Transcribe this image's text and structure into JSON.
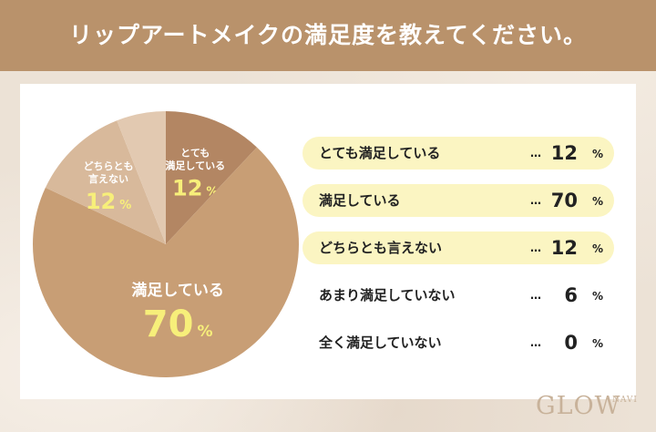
{
  "title": "リップアートメイクの満足度を教えてください。",
  "logo": {
    "main": "GLOW",
    "sub": "NAVI"
  },
  "colors": {
    "header": "#b9926b",
    "slice_main": "#c89e75",
    "slice_dark": "#b38663",
    "slice_light": "#d8b99b",
    "slice_lighter": "#e2c9b1",
    "value_text": "#f7ef7a",
    "highlight_bar": "#fbf5c2"
  },
  "chart_data": {
    "type": "pie",
    "unit": "%",
    "slices": [
      {
        "label": "とても満足している",
        "pie_label": [
          "とても",
          "満足している"
        ],
        "value": 12
      },
      {
        "label": "満足している",
        "pie_label": [
          "満足している"
        ],
        "value": 70
      },
      {
        "label": "どちらとも言えない",
        "pie_label": [
          "どちらとも",
          "言えない"
        ],
        "value": 12
      },
      {
        "label": "あまり満足していない",
        "pie_label": [],
        "value": 6
      },
      {
        "label": "全く満足していない",
        "pie_label": [],
        "value": 0
      }
    ]
  },
  "legend": {
    "dots": "…",
    "rows": [
      {
        "label": "とても満足している",
        "value": "12",
        "unit": "%",
        "highlight": true
      },
      {
        "label": "満足している",
        "value": "70",
        "unit": "%",
        "highlight": true
      },
      {
        "label": "どちらとも言えない",
        "value": "12",
        "unit": "%",
        "highlight": true
      },
      {
        "label": "あまり満足していない",
        "value": "6",
        "unit": "%",
        "highlight": false
      },
      {
        "label": "全く満足していない",
        "value": "0",
        "unit": "%",
        "highlight": false
      }
    ]
  }
}
